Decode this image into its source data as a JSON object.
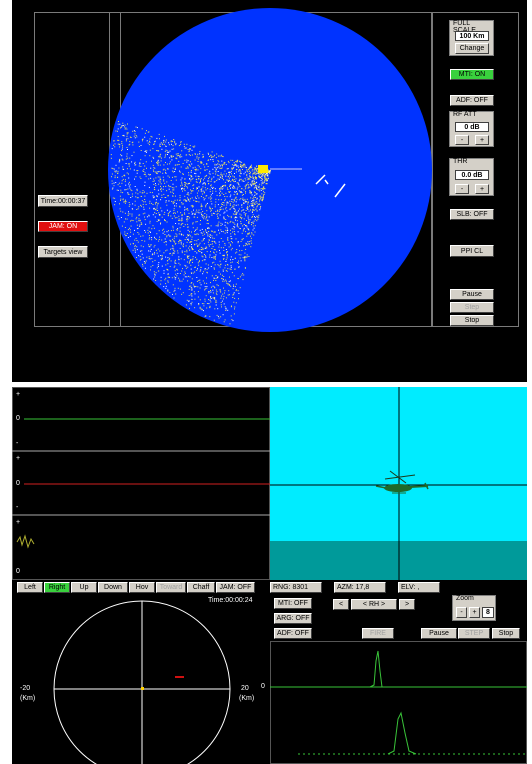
{
  "radar_window": {
    "time": "Time:00:00:37",
    "jam_button": "JAM: ON",
    "targets_view_button": "Targets view",
    "full_scale": {
      "title": "FULL SCALE",
      "value": "100 Km",
      "change_button": "Change"
    },
    "mti_button": "MTI: ON",
    "adf_button": "ADF: OFF",
    "rf_att": {
      "title": "RF ATT",
      "value": "0 dB",
      "minus": "-",
      "plus": "+"
    },
    "thr": {
      "title": "THR",
      "value": "0.0 dB",
      "minus": "-",
      "plus": "+"
    },
    "slb_button": "SLB: OFF",
    "ppi_button": "PPI CL",
    "pause_button": "Pause",
    "step_button": "Step",
    "stop_button": "Stop"
  },
  "tracking_window": {
    "scope_markers": {
      "plus": "+",
      "minus": "-",
      "zero": "0"
    },
    "direction_buttons": [
      "Left",
      "Right",
      "Up",
      "Down",
      "Hov",
      "Toward",
      "Chaff",
      "JAM: OFF"
    ],
    "active_direction": "Right",
    "time": "Time:00:00:24",
    "range_scale": {
      "left": "-20",
      "right": "20",
      "unit": "(Km)"
    },
    "bottom_zero": "0",
    "rng": "RNG: 8301",
    "azm": "AZM: 17,8",
    "elv": "ELV: ,",
    "mti_button": "MTI: OFF",
    "arg_button": "ARG: OFF",
    "adf_button": "ADF: OFF",
    "nav_left": "<",
    "rh_button": "< RH >",
    "nav_right": ">",
    "zoom": {
      "title": "Zoom",
      "minus": "-",
      "plus": "+",
      "value": "8"
    },
    "fire_button": "FIRE",
    "pause_button": "Pause",
    "step_button": "STEP",
    "stop_button": "Stop",
    "ascope_zero": "0"
  },
  "colors": {
    "ppi_blue": "#0033ff",
    "sky": "#00ecff",
    "ground": "#009a9a",
    "clutter": "#e8e060",
    "active_green": "#39d13d",
    "jam_red": "#e01010"
  }
}
